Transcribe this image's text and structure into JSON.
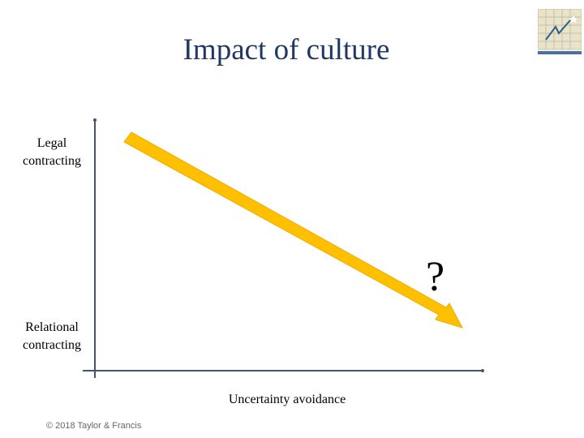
{
  "title": "Impact of culture",
  "labels": {
    "y_top": "Legal\ncontracting",
    "y_bottom": "Relational\ncontracting",
    "x_axis": "Uncertainty avoidance",
    "unknown": "?"
  },
  "footer": {
    "copyright": "© 2018 Taylor & Francis"
  },
  "colors": {
    "arrow_fill": "#ffc000",
    "arrow_stroke": "#f2a900",
    "axis": "#44546a",
    "title": "#1f3864"
  },
  "icons": {
    "logo": "graph-grid-logo-icon"
  }
}
